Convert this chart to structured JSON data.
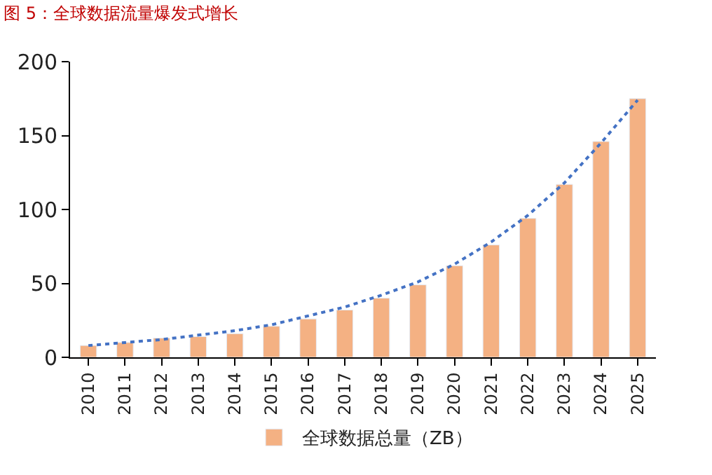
{
  "chart_data": {
    "type": "bar",
    "title": "图 5：全球数据流量爆发式增长",
    "categories": [
      "2010",
      "2011",
      "2012",
      "2013",
      "2014",
      "2015",
      "2016",
      "2017",
      "2018",
      "2019",
      "2020",
      "2021",
      "2022",
      "2023",
      "2024",
      "2025"
    ],
    "series": [
      {
        "name": "全球数据总量（ZB）",
        "color": "#f4b183",
        "values": [
          8,
          10,
          13,
          14,
          16,
          21,
          26,
          32,
          40,
          49,
          62,
          76,
          94,
          117,
          146,
          175
        ]
      },
      {
        "type": "line",
        "color": "#4472c4",
        "line_style": "dotted",
        "values": [
          8,
          10,
          12,
          15,
          18,
          22,
          28,
          34,
          42,
          51,
          63,
          78,
          96,
          118,
          145,
          174
        ]
      }
    ],
    "ylim": [
      0,
      200
    ],
    "yticks": [
      0,
      50,
      100,
      150,
      200
    ],
    "legend": "bottom"
  }
}
